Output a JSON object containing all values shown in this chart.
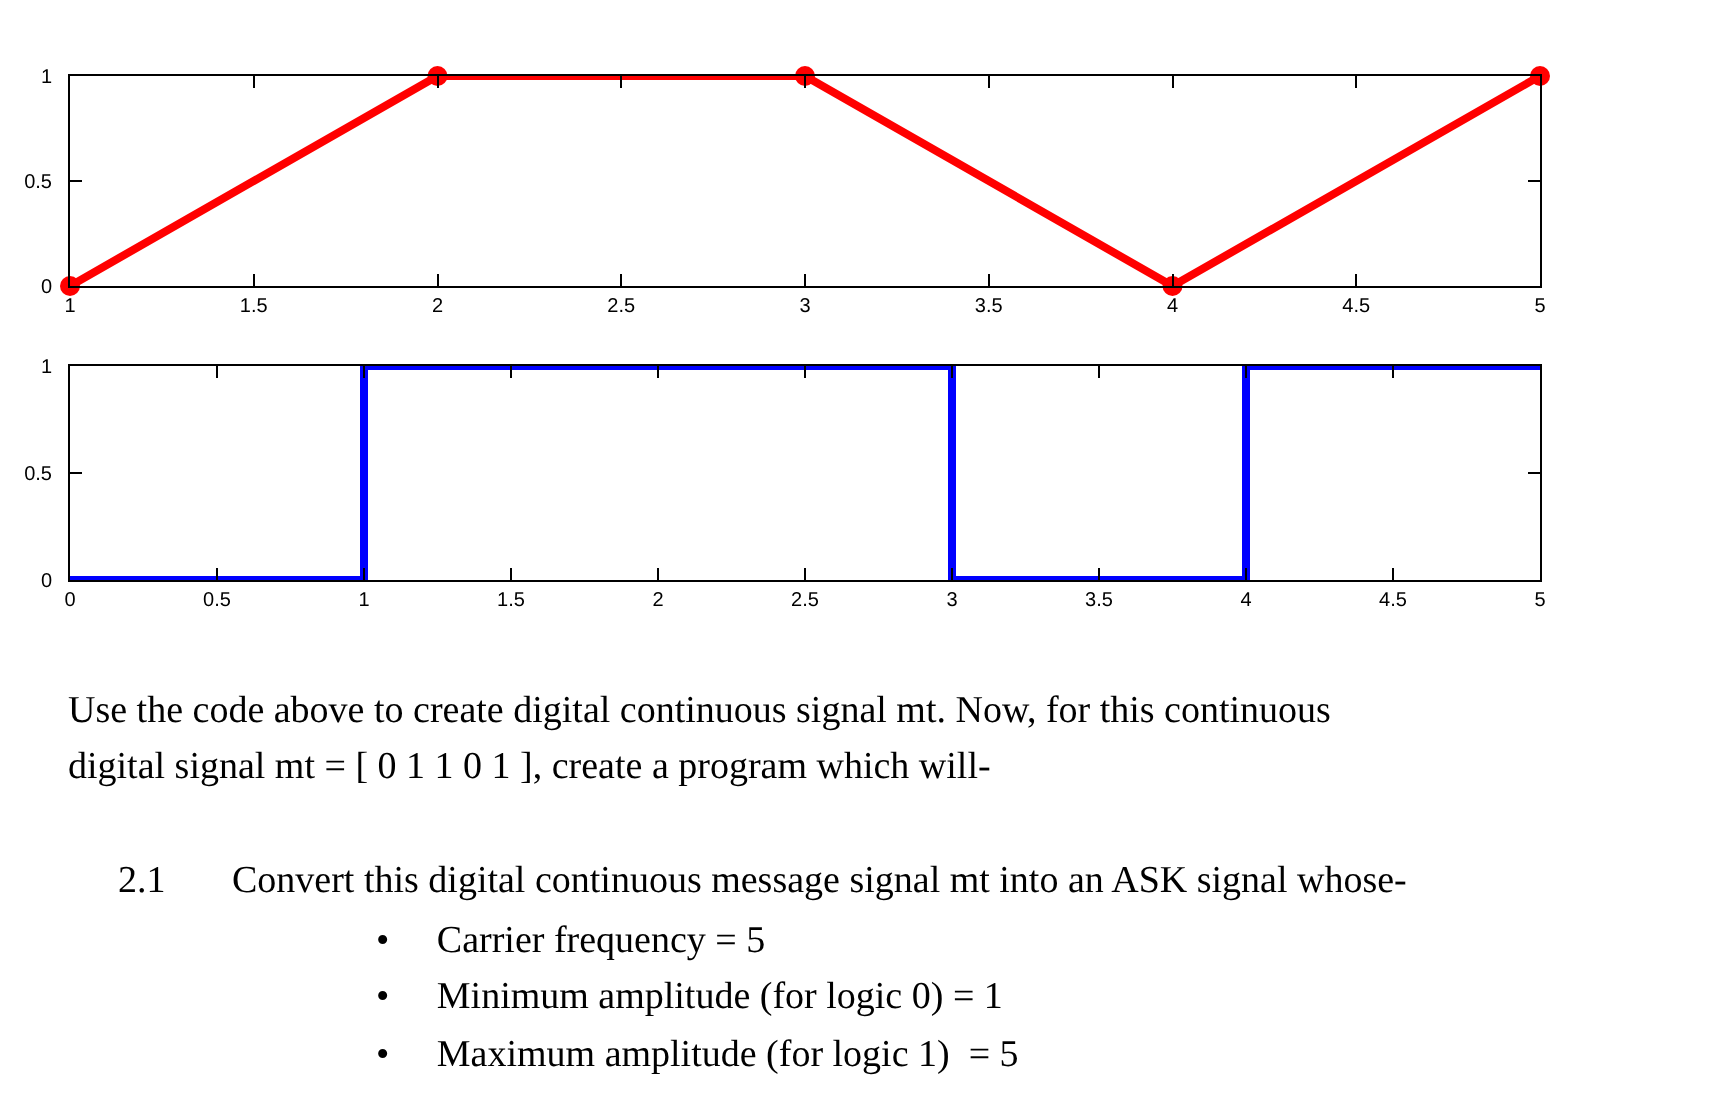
{
  "chart_data": [
    {
      "type": "line",
      "x": [
        1,
        2,
        3,
        4,
        5
      ],
      "values": [
        0,
        1,
        1,
        0,
        1
      ],
      "color": "#ff0000",
      "marker": "circle",
      "line_style": "solid",
      "xlim": [
        1,
        5
      ],
      "xticks": [
        1,
        1.5,
        2,
        2.5,
        3,
        3.5,
        4,
        4.5,
        5
      ],
      "ylim": [
        0,
        1
      ],
      "yticks": [
        0,
        0.5,
        1
      ]
    },
    {
      "type": "step",
      "x": [
        0,
        1,
        2,
        3,
        4,
        5
      ],
      "values": [
        0,
        1,
        1,
        0,
        1,
        1
      ],
      "color": "#0000ff",
      "marker": "none",
      "line_style": "solid",
      "xlim": [
        0,
        5
      ],
      "xticks": [
        0,
        0.5,
        1,
        1.5,
        2,
        2.5,
        3,
        3.5,
        4,
        4.5,
        5
      ],
      "ylim": [
        0,
        1
      ],
      "yticks": [
        0,
        0.5,
        1
      ]
    },
    {
      "type": "other",
      "annotations": [
        "Use the code above to create digital continuous signal mt. Now, for this continuous",
        "digital signal mt = [ 0 1 1 0 1 ], create a program which will-",
        "2.1",
        "Convert this digital continuous message signal mt into an ASK signal whose-",
        "•     Carrier frequency = 5",
        "•     Minimum amplitude (for logic 0) = 1",
        "•     Maximum amplitude (for logic 1)  = 5"
      ]
    }
  ]
}
